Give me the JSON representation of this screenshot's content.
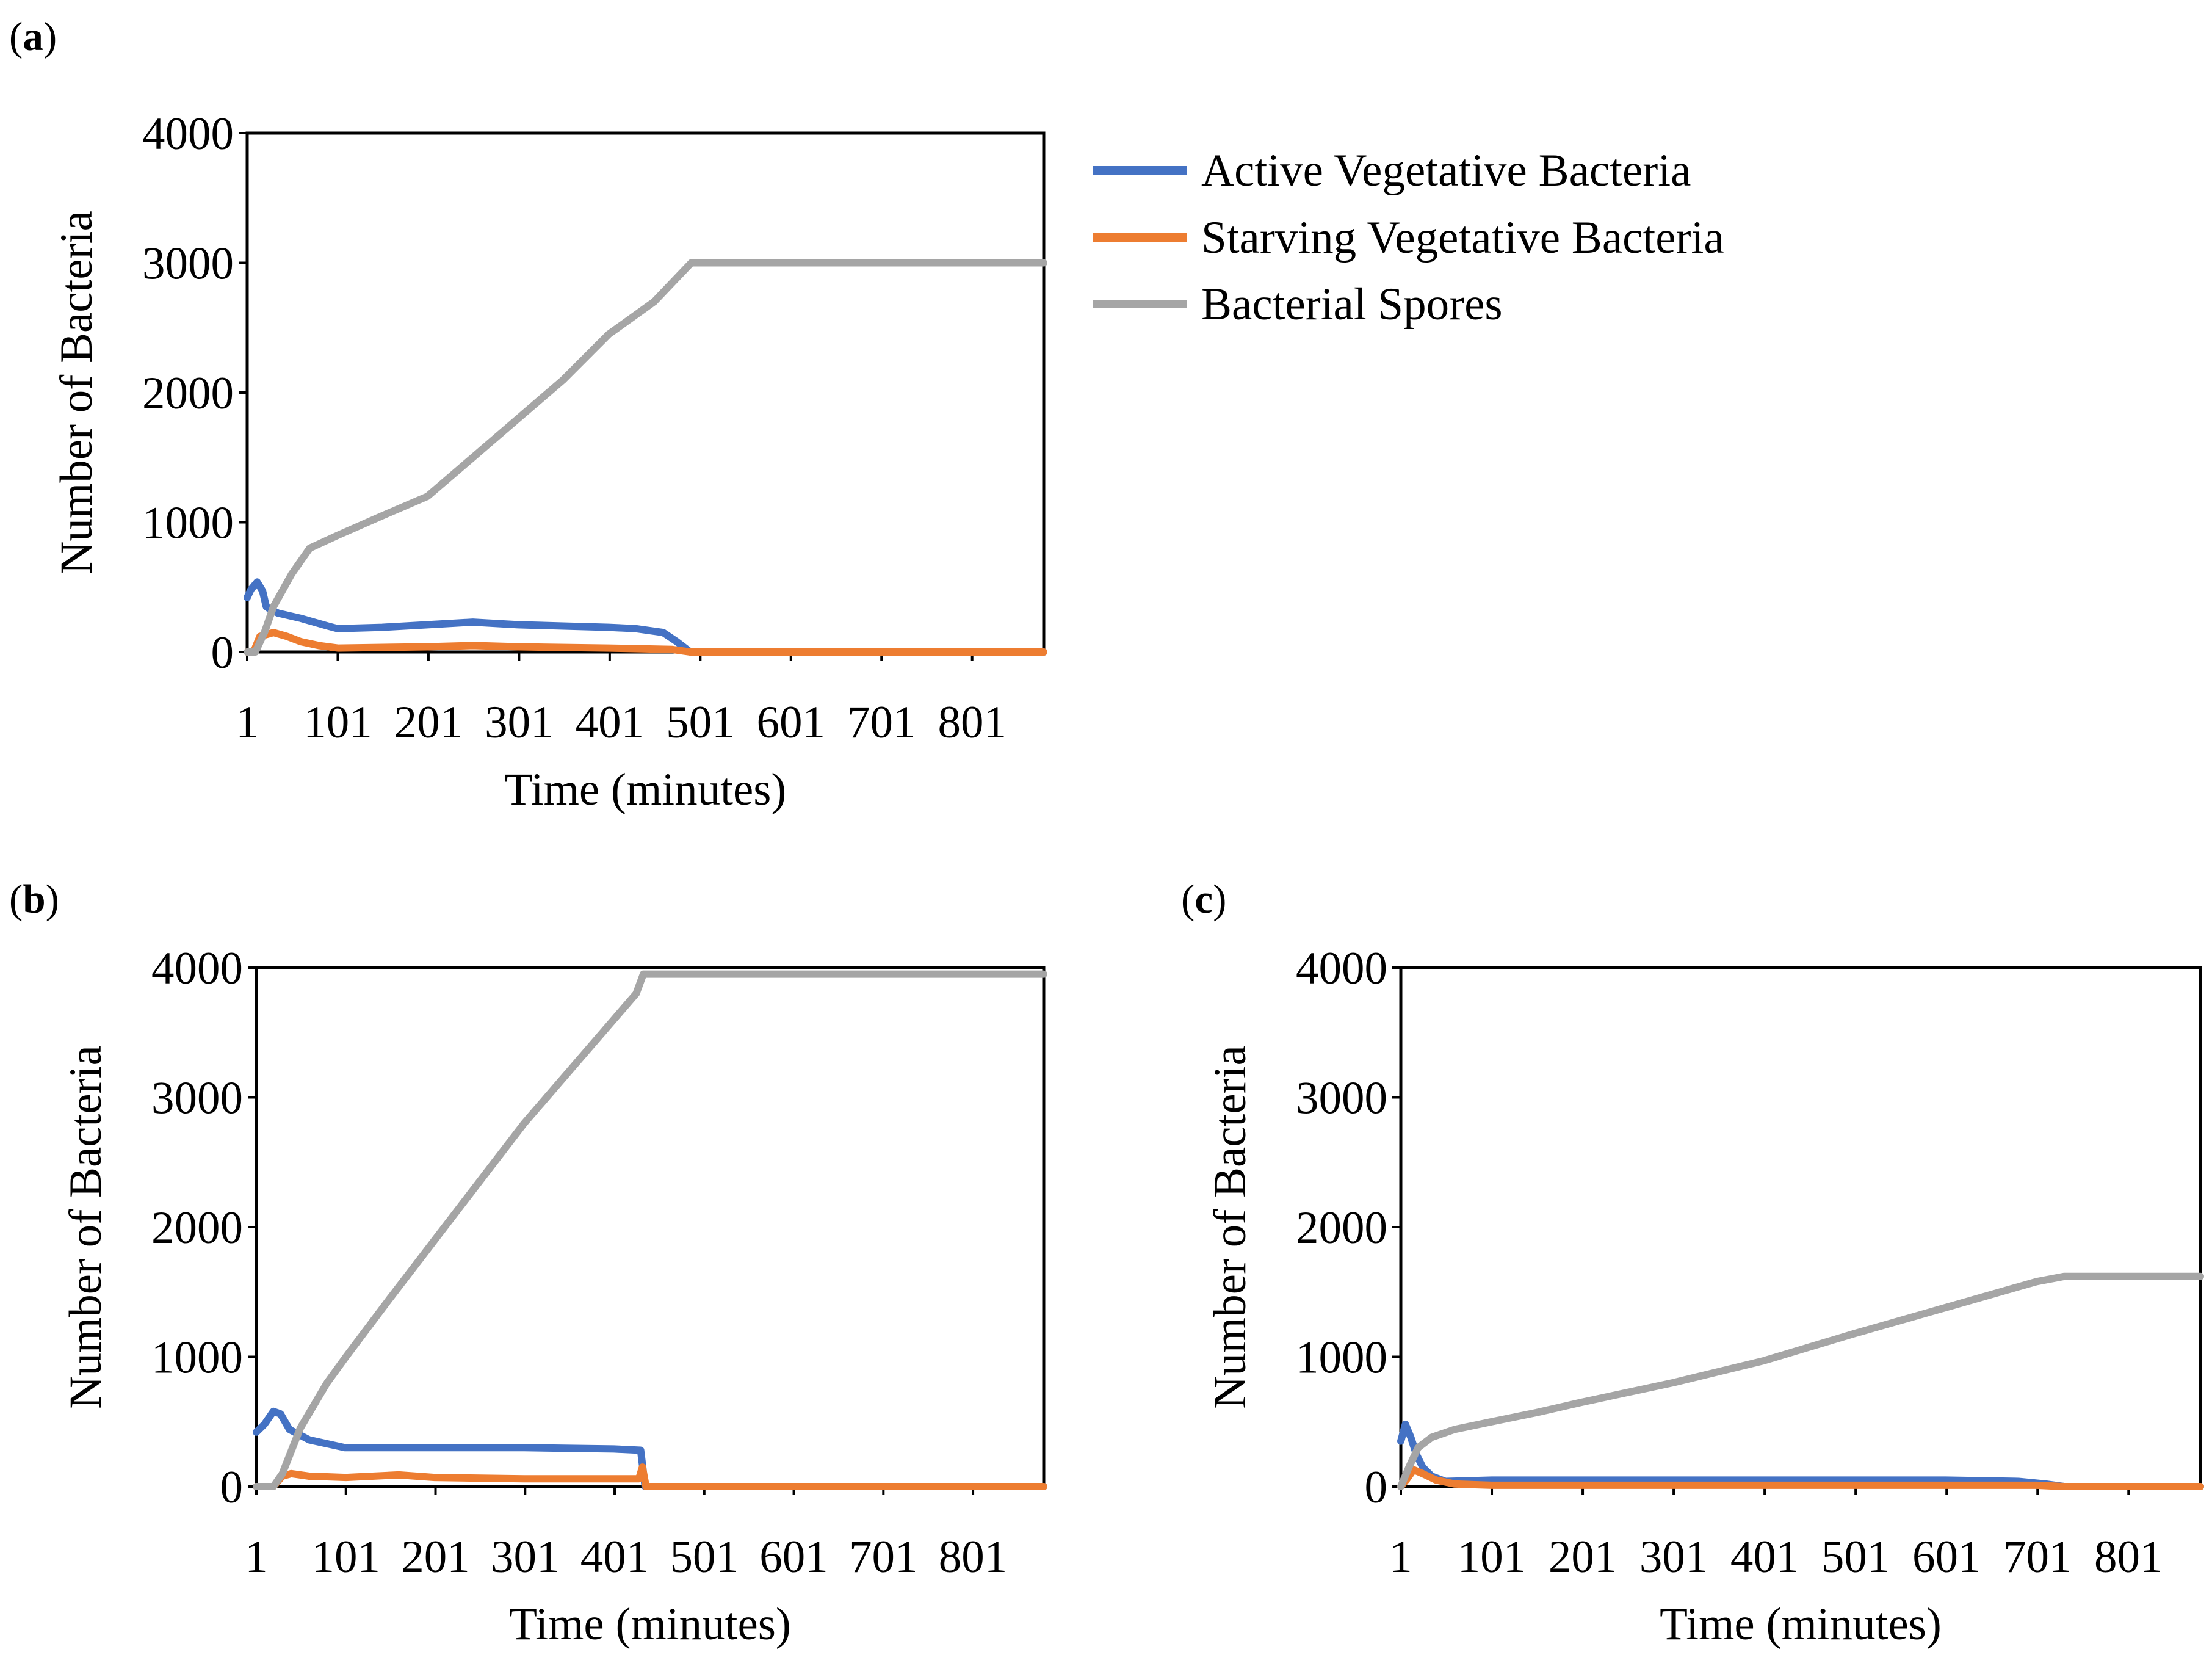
{
  "colors": {
    "active": "#4472c4",
    "starving": "#ed7d31",
    "spores": "#a5a5a5",
    "axis": "#000000"
  },
  "legend": {
    "items": [
      {
        "label": "Active Vegetative Bacteria",
        "color_key": "active"
      },
      {
        "label": "Starving Vegetative Bacteria",
        "color_key": "starving"
      },
      {
        "label": "Bacterial Spores",
        "color_key": "spores"
      }
    ]
  },
  "chart_data": [
    {
      "panel": "a",
      "type": "line",
      "xlabel": "Time (minutes)",
      "ylabel": "Number of Bacteria",
      "xlim": [
        1,
        880
      ],
      "ylim": [
        0,
        4000
      ],
      "xticks": [
        "1",
        "101",
        "201",
        "301",
        "401",
        "501",
        "601",
        "701",
        "801"
      ],
      "yticks": [
        "0",
        "1000",
        "2000",
        "3000",
        "4000"
      ],
      "series": [
        {
          "name": "Active Vegetative Bacteria",
          "color_key": "active",
          "x": [
            1,
            5,
            12,
            18,
            22,
            26,
            35,
            60,
            90,
            101,
            150,
            200,
            250,
            300,
            350,
            400,
            430,
            460,
            475,
            490,
            880
          ],
          "y": [
            420,
            480,
            540,
            470,
            350,
            330,
            300,
            260,
            200,
            180,
            190,
            210,
            230,
            210,
            200,
            190,
            180,
            150,
            80,
            0,
            0
          ]
        },
        {
          "name": "Starving Vegetative Bacteria",
          "color_key": "starving",
          "x": [
            1,
            8,
            15,
            30,
            45,
            60,
            80,
            101,
            200,
            250,
            300,
            400,
            470,
            490,
            880
          ],
          "y": [
            0,
            0,
            120,
            150,
            120,
            80,
            50,
            30,
            40,
            50,
            40,
            30,
            20,
            0,
            0
          ]
        },
        {
          "name": "Bacterial Spores",
          "color_key": "spores",
          "x": [
            1,
            10,
            20,
            30,
            50,
            70,
            101,
            150,
            200,
            250,
            300,
            350,
            400,
            450,
            491,
            880
          ],
          "y": [
            0,
            0,
            150,
            350,
            600,
            800,
            900,
            1050,
            1200,
            1500,
            1800,
            2100,
            2450,
            2700,
            3000,
            3000
          ]
        }
      ]
    },
    {
      "panel": "b",
      "type": "line",
      "xlabel": "Time (minutes)",
      "ylabel": "Number of Bacteria",
      "xlim": [
        1,
        880
      ],
      "ylim": [
        0,
        4000
      ],
      "xticks": [
        "1",
        "101",
        "201",
        "301",
        "401",
        "501",
        "601",
        "701",
        "801"
      ],
      "yticks": [
        "0",
        "1000",
        "2000",
        "3000",
        "4000"
      ],
      "series": [
        {
          "name": "Active Vegetative Bacteria",
          "color_key": "active",
          "x": [
            1,
            10,
            20,
            28,
            38,
            60,
            100,
            150,
            200,
            300,
            400,
            430,
            435,
            880
          ],
          "y": [
            420,
            480,
            580,
            560,
            440,
            360,
            300,
            300,
            300,
            300,
            290,
            280,
            0,
            0
          ]
        },
        {
          "name": "Starving Vegetative Bacteria",
          "color_key": "starving",
          "x": [
            1,
            20,
            30,
            40,
            60,
            101,
            160,
            200,
            300,
            400,
            428,
            432,
            436,
            880
          ],
          "y": [
            0,
            0,
            80,
            100,
            80,
            70,
            90,
            70,
            60,
            60,
            60,
            150,
            0,
            0
          ]
        },
        {
          "name": "Bacterial Spores",
          "color_key": "spores",
          "x": [
            1,
            20,
            30,
            50,
            80,
            101,
            150,
            200,
            250,
            300,
            350,
            400,
            425,
            433,
            880
          ],
          "y": [
            0,
            0,
            100,
            450,
            800,
            1000,
            1450,
            1900,
            2350,
            2800,
            3200,
            3600,
            3800,
            3950,
            3950
          ]
        }
      ]
    },
    {
      "panel": "c",
      "type": "line",
      "xlabel": "Time (minutes)",
      "ylabel": "Number of Bacteria",
      "xlim": [
        1,
        880
      ],
      "ylim": [
        0,
        4000
      ],
      "xticks": [
        "1",
        "101",
        "201",
        "301",
        "401",
        "501",
        "601",
        "701",
        "801"
      ],
      "yticks": [
        "0",
        "1000",
        "2000",
        "3000",
        "4000"
      ],
      "series": [
        {
          "name": "Active Vegetative Bacteria",
          "color_key": "active",
          "x": [
            1,
            6,
            12,
            18,
            25,
            35,
            50,
            101,
            200,
            300,
            400,
            500,
            600,
            680,
            710,
            730,
            880
          ],
          "y": [
            350,
            480,
            380,
            250,
            150,
            80,
            40,
            50,
            50,
            50,
            50,
            50,
            50,
            40,
            20,
            0,
            0
          ]
        },
        {
          "name": "Starving Vegetative Bacteria",
          "color_key": "starving",
          "x": [
            1,
            8,
            15,
            25,
            40,
            60,
            101,
            300,
            500,
            700,
            730,
            880
          ],
          "y": [
            0,
            60,
            130,
            100,
            50,
            20,
            10,
            10,
            10,
            10,
            0,
            0
          ]
        },
        {
          "name": "Bacterial Spores",
          "color_key": "spores",
          "x": [
            1,
            10,
            20,
            35,
            60,
            101,
            150,
            200,
            300,
            400,
            500,
            600,
            700,
            730,
            880
          ],
          "y": [
            0,
            150,
            300,
            380,
            440,
            500,
            570,
            650,
            800,
            970,
            1180,
            1380,
            1580,
            1620,
            1620
          ]
        }
      ]
    }
  ]
}
